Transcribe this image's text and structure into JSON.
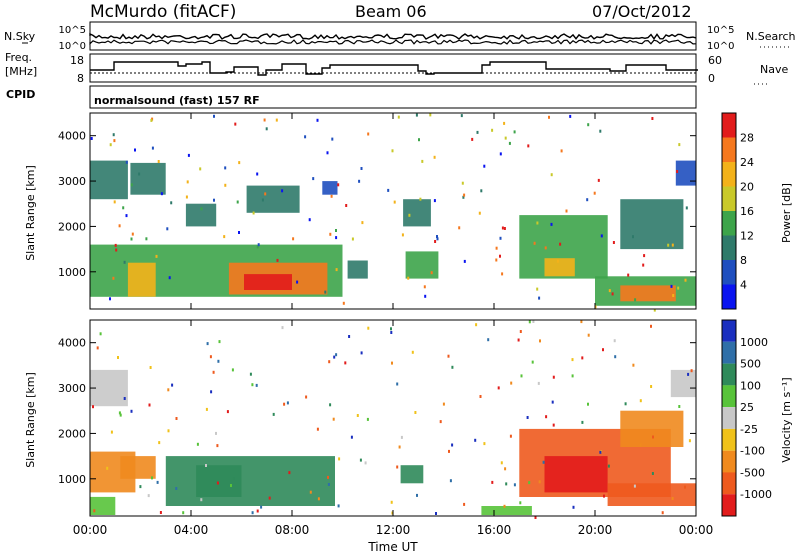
{
  "header": {
    "station": "McMurdo (fitACF)",
    "beam": "Beam 06",
    "date": "07/Oct/2012"
  },
  "noise_panel": {
    "left_label": "N.Sky",
    "right_label": "N.Search",
    "left_ticks": [
      "10^5",
      "10^0"
    ],
    "right_ticks": [
      "10^5",
      "10^0"
    ]
  },
  "freq_panel": {
    "left_label_1": "Freq.",
    "left_label_2": "[MHz]",
    "right_label": "Nave",
    "left_ticks": [
      "18",
      "8"
    ],
    "right_ticks": [
      "60",
      "0"
    ]
  },
  "cpid_panel": {
    "label": "CPID",
    "text": "normalsound (fast) 157 RF"
  },
  "x_axis": {
    "title": "Time UT",
    "ticks": [
      "00:00",
      "04:00",
      "08:00",
      "12:00",
      "16:00",
      "20:00",
      "00:00"
    ]
  },
  "power_panel": {
    "ylabel": "Slant Range [km]",
    "yticks": [
      "1000",
      "2000",
      "3000",
      "4000"
    ],
    "colorbar_title": "Power [dB]",
    "colorbar_ticks": [
      "4",
      "8",
      "12",
      "16",
      "20",
      "24",
      "28"
    ],
    "colors": [
      "#0a14f0",
      "#1f4fbf",
      "#2f7a6a",
      "#3da44a",
      "#c9c92a",
      "#f3b21a",
      "#f5781e",
      "#e21c1c"
    ]
  },
  "velocity_panel": {
    "ylabel": "Slant Range [km]",
    "yticks": [
      "1000",
      "2000",
      "3000",
      "4000"
    ],
    "colorbar_title": "Velocity [m s⁻¹]",
    "colorbar_ticks": [
      "1000",
      "500",
      "100",
      "25",
      "-25",
      "-100",
      "-500",
      "-1000"
    ],
    "colors": [
      "#1a2fbf",
      "#2f6fa8",
      "#2f8a5a",
      "#58c33a",
      "#c8c8c8",
      "#f0c21a",
      "#f08a1e",
      "#ee5a1e",
      "#e21c1c"
    ]
  },
  "chart_data": {
    "type": "heatmap",
    "x_range_hours": [
      0,
      24
    ],
    "y_range_km": [
      180,
      4500
    ],
    "x_ticks_hours": [
      0,
      4,
      8,
      12,
      16,
      20,
      24
    ],
    "y_ticks_km": [
      1000,
      2000,
      3000,
      4000
    ],
    "power_scale_db": [
      0,
      32
    ],
    "velocity_scale_ms": [
      -1000,
      1000
    ],
    "power_regions": [
      {
        "t0": 0.0,
        "t1": 10.0,
        "r0": 450,
        "r1": 1600,
        "level": 3
      },
      {
        "t0": 1.5,
        "t1": 2.6,
        "r0": 450,
        "r1": 1200,
        "level": 5
      },
      {
        "t0": 5.5,
        "t1": 9.4,
        "r0": 500,
        "r1": 1200,
        "level": 6
      },
      {
        "t0": 6.1,
        "t1": 8.0,
        "r0": 600,
        "r1": 950,
        "level": 7
      },
      {
        "t0": 0.0,
        "t1": 1.5,
        "r0": 2600,
        "r1": 3450,
        "level": 2
      },
      {
        "t0": 1.6,
        "t1": 3.0,
        "r0": 2700,
        "r1": 3400,
        "level": 2
      },
      {
        "t0": 3.8,
        "t1": 5.0,
        "r0": 2000,
        "r1": 2500,
        "level": 2
      },
      {
        "t0": 6.2,
        "t1": 8.3,
        "r0": 2300,
        "r1": 2900,
        "level": 2
      },
      {
        "t0": 9.2,
        "t1": 9.8,
        "r0": 2700,
        "r1": 3000,
        "level": 1
      },
      {
        "t0": 12.5,
        "t1": 13.8,
        "r0": 850,
        "r1": 1450,
        "level": 3
      },
      {
        "t0": 10.2,
        "t1": 11.0,
        "r0": 850,
        "r1": 1250,
        "level": 2
      },
      {
        "t0": 12.4,
        "t1": 13.5,
        "r0": 2000,
        "r1": 2600,
        "level": 2
      },
      {
        "t0": 17.0,
        "t1": 20.5,
        "r0": 850,
        "r1": 2250,
        "level": 3
      },
      {
        "t0": 18.0,
        "t1": 19.2,
        "r0": 900,
        "r1": 1300,
        "level": 5
      },
      {
        "t0": 20.0,
        "t1": 24.0,
        "r0": 250,
        "r1": 900,
        "level": 3
      },
      {
        "t0": 21.0,
        "t1": 23.2,
        "r0": 350,
        "r1": 700,
        "level": 6
      },
      {
        "t0": 21.0,
        "t1": 23.5,
        "r0": 1500,
        "r1": 2600,
        "level": 2
      },
      {
        "t0": 23.2,
        "t1": 24.0,
        "r0": 2900,
        "r1": 3450,
        "level": 1
      }
    ],
    "velocity_regions": [
      {
        "t0": 0.0,
        "t1": 1.8,
        "r0": 700,
        "r1": 1600,
        "level": 6
      },
      {
        "t0": 0.0,
        "t1": 1.0,
        "r0": 200,
        "r1": 600,
        "level": 3
      },
      {
        "t0": 1.2,
        "t1": 2.6,
        "r0": 1000,
        "r1": 1500,
        "level": 6
      },
      {
        "t0": 3.0,
        "t1": 9.7,
        "r0": 400,
        "r1": 1500,
        "level": 2
      },
      {
        "t0": 4.2,
        "t1": 6.0,
        "r0": 600,
        "r1": 1300,
        "level": 2
      },
      {
        "t0": 0.0,
        "t1": 1.5,
        "r0": 2600,
        "r1": 3400,
        "level": 4
      },
      {
        "t0": 12.3,
        "t1": 13.2,
        "r0": 900,
        "r1": 1300,
        "level": 2
      },
      {
        "t0": 17.0,
        "t1": 23.0,
        "r0": 600,
        "r1": 2100,
        "level": 7
      },
      {
        "t0": 18.0,
        "t1": 20.5,
        "r0": 700,
        "r1": 1500,
        "level": 8
      },
      {
        "t0": 20.5,
        "t1": 24.0,
        "r0": 400,
        "r1": 900,
        "level": 7
      },
      {
        "t0": 21.0,
        "t1": 23.5,
        "r0": 1700,
        "r1": 2500,
        "level": 6
      },
      {
        "t0": 23.0,
        "t1": 24.0,
        "r0": 2800,
        "r1": 3400,
        "level": 4
      },
      {
        "t0": 15.5,
        "t1": 17.5,
        "r0": 200,
        "r1": 400,
        "level": 3
      }
    ]
  }
}
